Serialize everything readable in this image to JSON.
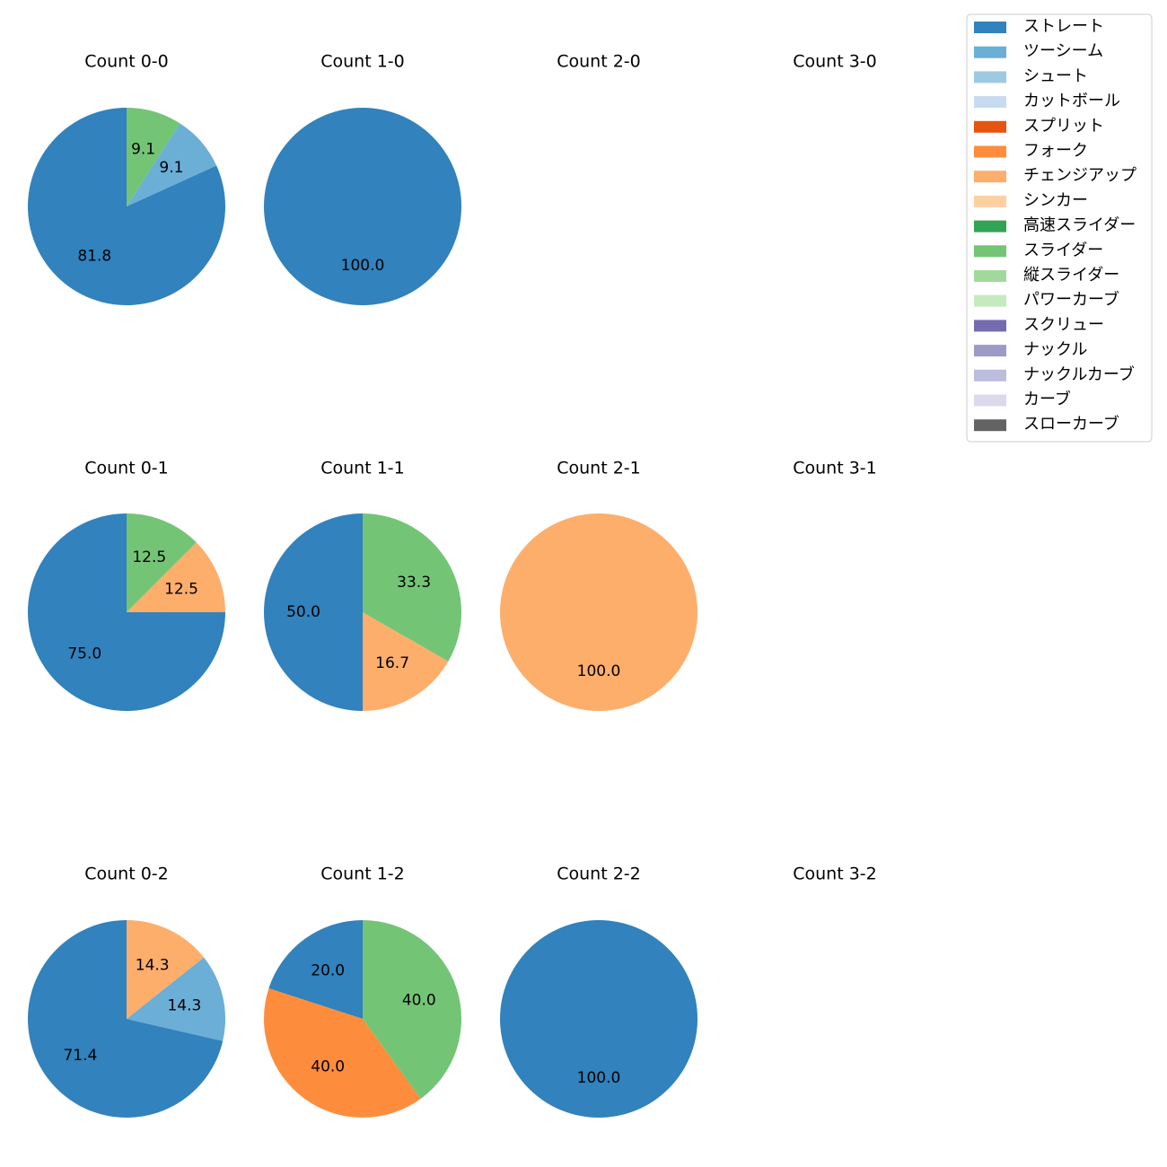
{
  "chart_data": {
    "type": "pie",
    "title": "",
    "legend": {
      "position": "top-right",
      "entries": [
        {
          "label": "ストレート",
          "color": "#3182bd"
        },
        {
          "label": "ツーシーム",
          "color": "#6baed6"
        },
        {
          "label": "シュート",
          "color": "#9ecae1"
        },
        {
          "label": "カットボール",
          "color": "#c6dbef"
        },
        {
          "label": "スプリット",
          "color": "#e6550d"
        },
        {
          "label": "フォーク",
          "color": "#fd8d3c"
        },
        {
          "label": "チェンジアップ",
          "color": "#fdae6b"
        },
        {
          "label": "シンカー",
          "color": "#fdd0a2"
        },
        {
          "label": "高速スライダー",
          "color": "#31a354"
        },
        {
          "label": "スライダー",
          "color": "#74c476"
        },
        {
          "label": "縦スライダー",
          "color": "#a1d99b"
        },
        {
          "label": "パワーカーブ",
          "color": "#c7e9c0"
        },
        {
          "label": "スクリュー",
          "color": "#756bb1"
        },
        {
          "label": "ナックル",
          "color": "#9e9ac8"
        },
        {
          "label": "ナックルカーブ",
          "color": "#bcbddc"
        },
        {
          "label": "カーブ",
          "color": "#dadaeb"
        },
        {
          "label": "スローカーブ",
          "color": "#636363"
        }
      ]
    },
    "pies": [
      {
        "title": "Count 0-0",
        "slices": [
          {
            "pitch": "ストレート",
            "value": 81.8,
            "label": "81.8"
          },
          {
            "pitch": "ツーシーム",
            "value": 9.1,
            "label": "9.1"
          },
          {
            "pitch": "スライダー",
            "value": 9.1,
            "label": "9.1"
          }
        ]
      },
      {
        "title": "Count 1-0",
        "slices": [
          {
            "pitch": "ストレート",
            "value": 100.0,
            "label": "100.0"
          }
        ]
      },
      {
        "title": "Count 2-0",
        "slices": []
      },
      {
        "title": "Count 3-0",
        "slices": []
      },
      {
        "title": "Count 0-1",
        "slices": [
          {
            "pitch": "ストレート",
            "value": 75.0,
            "label": "75.0"
          },
          {
            "pitch": "チェンジアップ",
            "value": 12.5,
            "label": "12.5"
          },
          {
            "pitch": "スライダー",
            "value": 12.5,
            "label": "12.5"
          }
        ]
      },
      {
        "title": "Count 1-1",
        "slices": [
          {
            "pitch": "ストレート",
            "value": 50.0,
            "label": "50.0"
          },
          {
            "pitch": "チェンジアップ",
            "value": 16.7,
            "label": "16.7"
          },
          {
            "pitch": "スライダー",
            "value": 33.3,
            "label": "33.3"
          }
        ]
      },
      {
        "title": "Count 2-1",
        "slices": [
          {
            "pitch": "チェンジアップ",
            "value": 100.0,
            "label": "100.0"
          }
        ]
      },
      {
        "title": "Count 3-1",
        "slices": []
      },
      {
        "title": "Count 0-2",
        "slices": [
          {
            "pitch": "ストレート",
            "value": 71.4,
            "label": "71.4"
          },
          {
            "pitch": "ツーシーム",
            "value": 14.3,
            "label": "14.3"
          },
          {
            "pitch": "チェンジアップ",
            "value": 14.3,
            "label": "14.3"
          }
        ]
      },
      {
        "title": "Count 1-2",
        "slices": [
          {
            "pitch": "ストレート",
            "value": 20.0,
            "label": "20.0"
          },
          {
            "pitch": "フォーク",
            "value": 40.0,
            "label": "40.0"
          },
          {
            "pitch": "スライダー",
            "value": 40.0,
            "label": "40.0"
          }
        ]
      },
      {
        "title": "Count 2-2",
        "slices": [
          {
            "pitch": "ストレート",
            "value": 100.0,
            "label": "100.0"
          }
        ]
      },
      {
        "title": "Count 3-2",
        "slices": []
      }
    ]
  }
}
